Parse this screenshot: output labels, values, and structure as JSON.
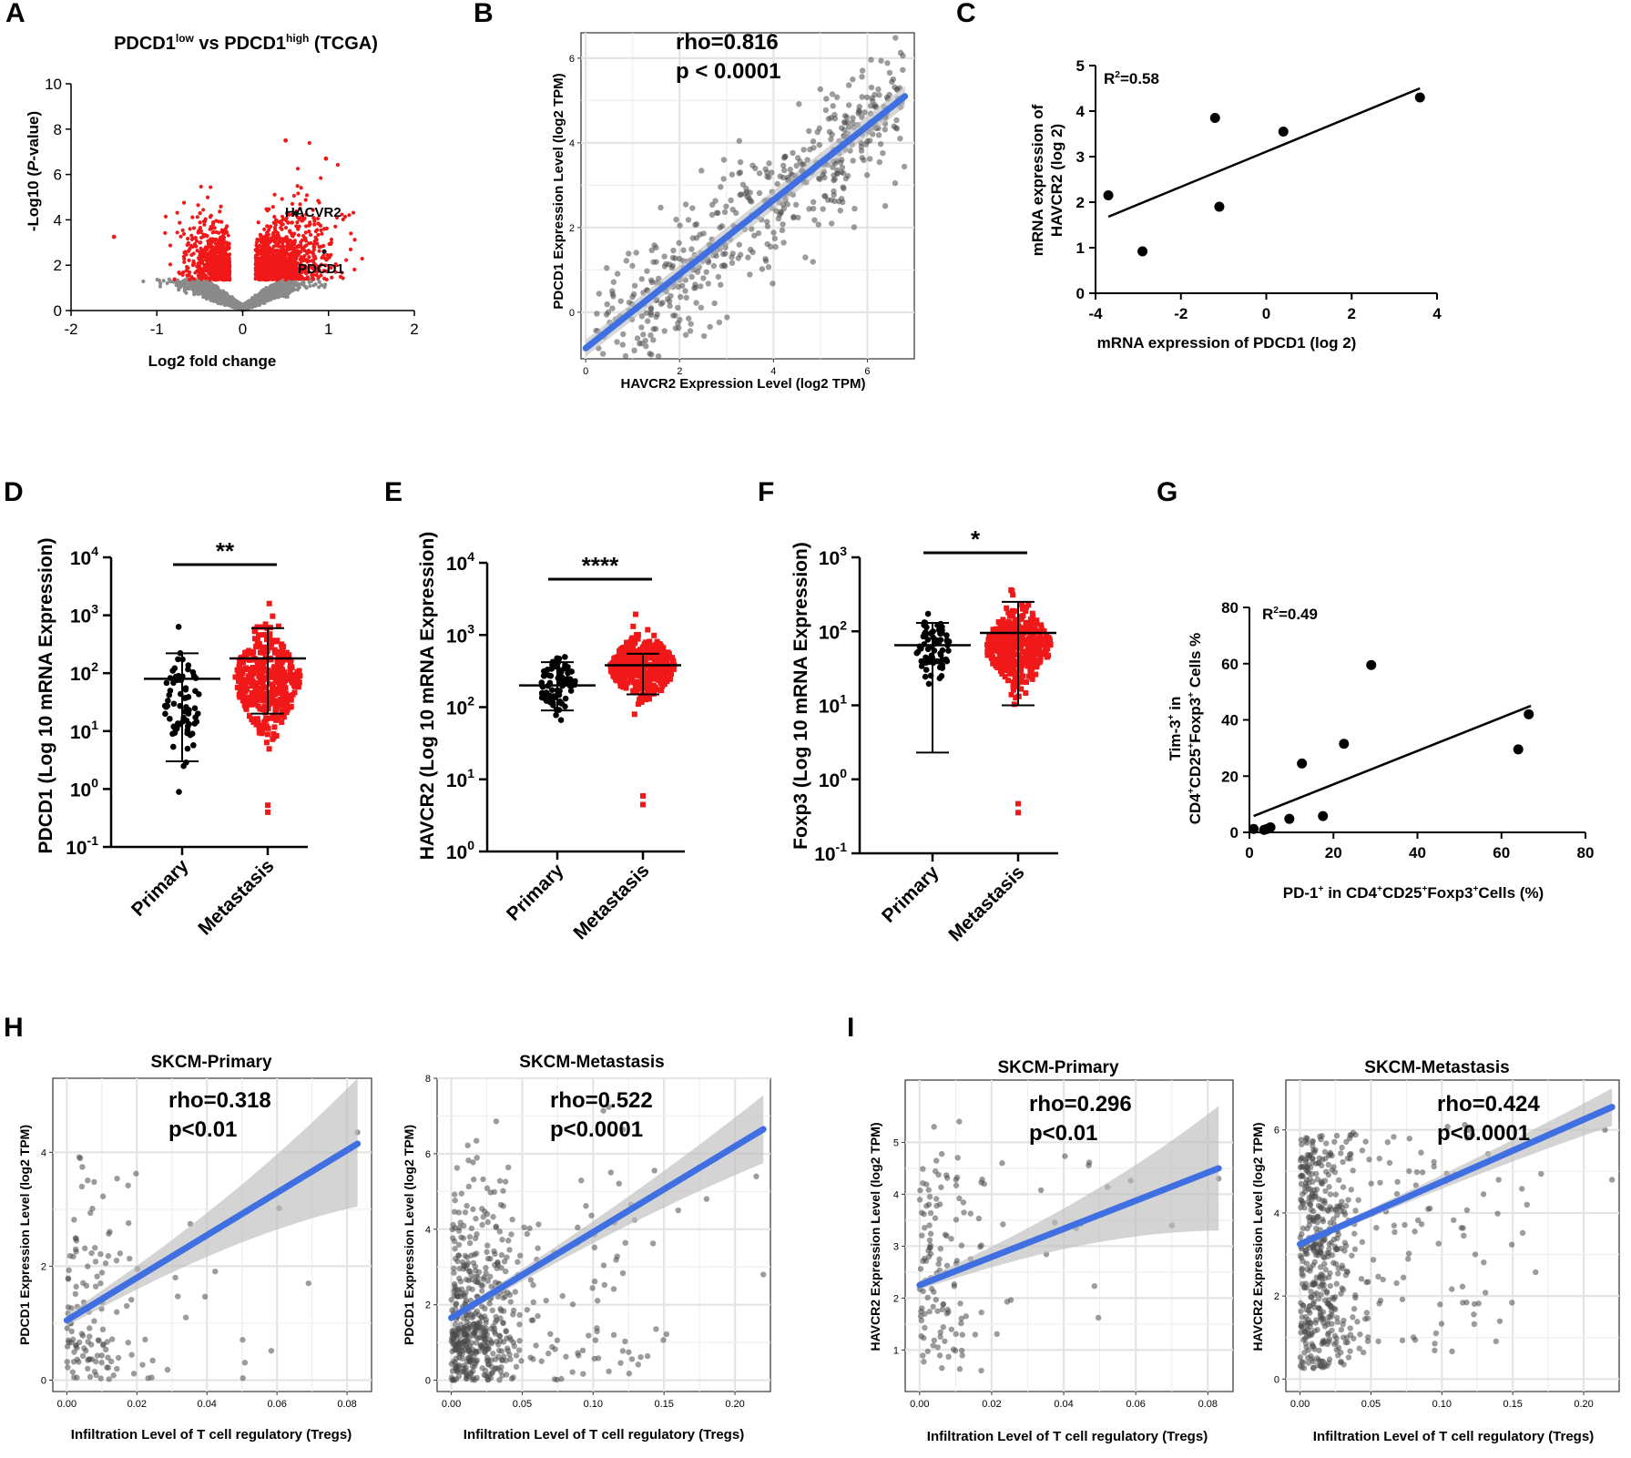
{
  "figure": {
    "panel_labels": [
      "A",
      "B",
      "C",
      "D",
      "E",
      "F",
      "G",
      "H",
      "I"
    ]
  },
  "chart_data": [
    {
      "id": "A",
      "type": "scatter",
      "title": {
        "gene": "PDCD1",
        "low": "low",
        "vs": " vs ",
        "high": "high",
        "suffix": " (TCGA)"
      },
      "xlabel": "Log2 fold change",
      "ylabel": {
        "pre": "-Log10 (",
        "ital": "P",
        "post": "-value)"
      },
      "xlim": [
        -2,
        2
      ],
      "ylim": [
        0,
        10
      ],
      "xticks": [
        -2,
        -1,
        0,
        1,
        2
      ],
      "yticks": [
        0,
        2,
        4,
        6,
        8,
        10
      ],
      "annotations": [
        {
          "text": "HACVR2",
          "x": 0.5,
          "y": 4.4
        },
        {
          "text": "PDCD1",
          "x": 0.65,
          "y": 1.85
        }
      ],
      "colors": {
        "significant": "#f01818",
        "nonsignificant": "#8a8a8a",
        "label": "#111111"
      }
    },
    {
      "id": "B",
      "type": "scatter",
      "annotation": [
        "rho=0.816",
        "p < 0.0001"
      ],
      "xlabel": "HAVCR2 Expression Level (log2 TPM)",
      "ylabel": "PDCD1 Expression Level (log2 TPM)",
      "xlim": [
        -0.1,
        7.0
      ],
      "ylim": [
        -1.1,
        6.6
      ],
      "xticks": [
        0,
        2,
        4,
        6
      ],
      "yticks": [
        0,
        2,
        4,
        6
      ],
      "fit": {
        "x": [
          0,
          6.8
        ],
        "y": [
          -0.85,
          5.1
        ]
      },
      "colors": {
        "point": "#505050",
        "fit": "#3f6fe0",
        "band": "#c8c8c8"
      }
    },
    {
      "id": "C",
      "type": "scatter",
      "annotation": {
        "pre": "R",
        "sup": "2",
        "post": "=0.58"
      },
      "xlabel": "mRNA expression of PDCD1 (log 2)",
      "ylabel": [
        "mRNA expression of",
        "HAVCR2 (log 2)"
      ],
      "xlim": [
        -4,
        4
      ],
      "ylim": [
        0,
        5
      ],
      "xticks": [
        -4,
        -2,
        0,
        2,
        4
      ],
      "yticks": [
        0,
        1,
        2,
        3,
        4,
        5
      ],
      "x": [
        -3.7,
        -2.9,
        -1.2,
        -1.1,
        0.4,
        3.6
      ],
      "y": [
        2.15,
        0.92,
        3.85,
        1.9,
        3.55,
        4.3
      ],
      "fit": {
        "x": [
          -3.7,
          3.6
        ],
        "y": [
          1.68,
          4.5
        ]
      }
    },
    {
      "id": "D",
      "type": "scatter",
      "ylabel": "PDCD1 (Log 10 mRNA Expression)",
      "categories": [
        "Primary",
        "Metastasis"
      ],
      "ylog": [
        -1,
        4
      ],
      "yticks": [
        {
          "base": "10",
          "exp": "-1"
        },
        {
          "base": "10",
          "exp": "0"
        },
        {
          "base": "10",
          "exp": "1"
        },
        {
          "base": "10",
          "exp": "2"
        },
        {
          "base": "10",
          "exp": "3"
        },
        {
          "base": "10",
          "exp": "4"
        }
      ],
      "significance": "**",
      "groups": [
        {
          "name": "Primary",
          "n": 70,
          "center": 1.45,
          "spread": 0.85,
          "min": -0.05,
          "max": 2.8,
          "mean": 80,
          "sd_lo": 3,
          "sd_hi": 220,
          "color": "#000000"
        },
        {
          "name": "Metastasis",
          "n": 420,
          "center": 1.9,
          "spread": 0.7,
          "min": -0.4,
          "max": 3.35,
          "mean": 180,
          "sd_lo": 20,
          "sd_hi": 600,
          "color": "#f01818"
        }
      ]
    },
    {
      "id": "E",
      "type": "scatter",
      "ylabel": "HAVCR2 (Log 10 mRNA Expression)",
      "categories": [
        "Primary",
        "Metastasis"
      ],
      "ylog": [
        0,
        4
      ],
      "yticks": [
        {
          "base": "10",
          "exp": "0"
        },
        {
          "base": "10",
          "exp": "1"
        },
        {
          "base": "10",
          "exp": "2"
        },
        {
          "base": "10",
          "exp": "3"
        },
        {
          "base": "10",
          "exp": "4"
        }
      ],
      "significance": "****",
      "groups": [
        {
          "name": "Primary",
          "n": 80,
          "center": 2.3,
          "spread": 0.35,
          "min": 1.35,
          "max": 3.05,
          "mean": 200,
          "sd_lo": 90,
          "sd_hi": 420,
          "color": "#000000"
        },
        {
          "name": "Metastasis",
          "n": 420,
          "center": 2.55,
          "spread": 0.35,
          "min": 0.65,
          "max": 3.6,
          "mean": 380,
          "sd_lo": 150,
          "sd_hi": 550,
          "color": "#f01818"
        }
      ]
    },
    {
      "id": "F",
      "type": "scatter",
      "ylabel": "Foxp3 (Log 10 mRNA Expression)",
      "categories": [
        "Primary",
        "Metastasis"
      ],
      "ylog": [
        -1,
        3
      ],
      "yticks": [
        {
          "base": "10",
          "exp": "-1"
        },
        {
          "base": "10",
          "exp": "0"
        },
        {
          "base": "10",
          "exp": "1"
        },
        {
          "base": "10",
          "exp": "2"
        },
        {
          "base": "10",
          "exp": "3"
        }
      ],
      "significance": "*",
      "groups": [
        {
          "name": "Primary",
          "n": 70,
          "center": 1.75,
          "spread": 0.35,
          "min": 0.75,
          "max": 2.5,
          "mean": 65,
          "sd_lo": 2.3,
          "sd_hi": 130,
          "color": "#000000"
        },
        {
          "name": "Metastasis",
          "n": 420,
          "center": 1.8,
          "spread": 0.4,
          "min": -0.45,
          "max": 2.85,
          "mean": 95,
          "sd_lo": 10,
          "sd_hi": 250,
          "color": "#f01818"
        }
      ]
    },
    {
      "id": "G",
      "type": "scatter",
      "annotation": {
        "pre": "R",
        "sup": "2",
        "post": "=0.49"
      },
      "xlabel": {
        "t1": "PD-1",
        "s1": "+",
        "t2": " in CD4",
        "s2": "+",
        "t3": "CD25",
        "s3": "+",
        "t4": "Foxp3",
        "s4": "+",
        "t5": "Cells (%)"
      },
      "ylabel_top": {
        "t1": "Tim-3",
        "s1": "+",
        "t2": " in"
      },
      "ylabel_bottom": {
        "t1": "CD4",
        "s1": "+",
        "t2": "CD25",
        "s2": "+",
        "t3": "Foxp3",
        "s3": "+",
        "t4": " Cells %"
      },
      "xlim": [
        0,
        80
      ],
      "ylim": [
        0,
        80
      ],
      "xticks": [
        0,
        20,
        40,
        60,
        80
      ],
      "yticks": [
        0,
        20,
        40,
        60,
        80
      ],
      "x": [
        1.0,
        3.5,
        4.2,
        5.0,
        9.5,
        12.5,
        17.5,
        22.5,
        29.0,
        64.0,
        66.5
      ],
      "y": [
        1.2,
        0.9,
        1.2,
        1.8,
        4.8,
        24.5,
        5.8,
        31.5,
        59.5,
        29.5,
        42.0
      ],
      "fit": {
        "x": [
          1,
          67
        ],
        "y": [
          5.8,
          45.0
        ]
      }
    },
    {
      "id": "H1",
      "type": "scatter",
      "title": "SKCM-Primary",
      "annotation": [
        "rho=0.318",
        "p<0.01"
      ],
      "xlabel": "Infiltration Level of T cell regulatory (Tregs)",
      "ylabel": "PDCD1 Expression Level (log2 TPM)",
      "xlim": [
        -0.004,
        0.087
      ],
      "ylim": [
        -0.2,
        5.3
      ],
      "xticks": [
        0.0,
        0.02,
        0.04,
        0.06,
        0.08
      ],
      "yticks": [
        0,
        2,
        4
      ],
      "xtick_labels": [
        "0.00",
        "0.02",
        "0.04",
        "0.06",
        "0.08"
      ],
      "fit": {
        "x": [
          0,
          0.083
        ],
        "y": [
          1.05,
          4.15
        ]
      },
      "band_hi": [
        1.35,
        5.3
      ],
      "band_lo": [
        0.75,
        3.05
      ]
    },
    {
      "id": "H2",
      "type": "scatter",
      "title": "SKCM-Metastasis",
      "annotation": [
        "rho=0.522",
        "p<0.0001"
      ],
      "xlabel": "Infiltration Level of T cell regulatory (Tregs)",
      "ylabel": "PDCD1 Expression Level (log2 TPM)",
      "xlim": [
        -0.01,
        0.225
      ],
      "ylim": [
        -0.3,
        8.0
      ],
      "xticks": [
        0.0,
        0.05,
        0.1,
        0.15,
        0.2
      ],
      "yticks": [
        0,
        2,
        4,
        6,
        8
      ],
      "xtick_labels": [
        "0.00",
        "0.05",
        "0.10",
        "0.15",
        "0.20"
      ],
      "fit": {
        "x": [
          0,
          0.22
        ],
        "y": [
          1.65,
          6.65
        ]
      },
      "band_hi": [
        1.9,
        7.55
      ],
      "band_lo": [
        1.4,
        5.75
      ]
    },
    {
      "id": "I1",
      "type": "scatter",
      "title": "SKCM-Primary",
      "annotation": [
        "rho=0.296",
        "p<0.01"
      ],
      "xlabel": "Infiltration Level of T cell regulatory (Tregs)",
      "ylabel": "HAVCR2 Expression Level (log2 TPM)",
      "xlim": [
        -0.004,
        0.087
      ],
      "ylim": [
        0.2,
        6.2
      ],
      "xticks": [
        0.0,
        0.02,
        0.04,
        0.06,
        0.08
      ],
      "yticks": [
        1,
        2,
        3,
        4,
        5
      ],
      "xtick_labels": [
        "0.00",
        "0.02",
        "0.04",
        "0.06",
        "0.08"
      ],
      "fit": {
        "x": [
          0,
          0.083
        ],
        "y": [
          2.25,
          4.5
        ]
      },
      "band_hi": [
        2.5,
        5.7
      ],
      "band_lo": [
        2.0,
        3.3
      ]
    },
    {
      "id": "I2",
      "type": "scatter",
      "title": "SKCM-Metastasis",
      "annotation": [
        "rho=0.424",
        "p<0.0001"
      ],
      "xlabel": "Infiltration Level of T cell regulatory (Tregs)",
      "ylabel": "HAVCR2 Expression Level (log2 TPM)",
      "xlim": [
        -0.01,
        0.225
      ],
      "ylim": [
        -0.3,
        7.2
      ],
      "xticks": [
        0.0,
        0.05,
        0.1,
        0.15,
        0.2
      ],
      "yticks": [
        0,
        2,
        4,
        6
      ],
      "xtick_labels": [
        "0.00",
        "0.05",
        "0.10",
        "0.15",
        "0.20"
      ],
      "fit": {
        "x": [
          0,
          0.22
        ],
        "y": [
          3.25,
          6.55
        ]
      },
      "band_hi": [
        3.45,
        7.0
      ],
      "band_lo": [
        3.05,
        6.1
      ]
    }
  ]
}
